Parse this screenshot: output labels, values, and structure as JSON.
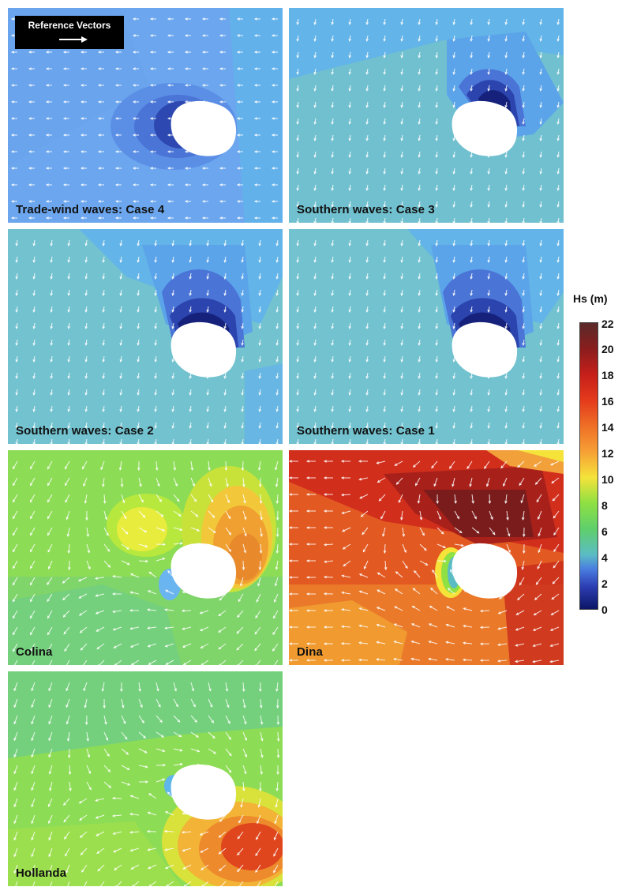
{
  "reference": {
    "label": "Reference Vectors"
  },
  "panels": [
    {
      "caption": "Trade-wind waves: Case 4",
      "base": "#6ba6ee",
      "dir": 180
    },
    {
      "caption": "Southern waves: Case 3",
      "base": "#70c0cf",
      "dir": 100
    },
    {
      "caption": "Southern waves: Case 2",
      "base": "#72c2cf",
      "dir": 100
    },
    {
      "caption": "Southern waves: Case 1",
      "base": "#72c2cf",
      "dir": 100
    },
    {
      "caption": "Colina",
      "base": "#8ddc55",
      "dir": 120
    },
    {
      "caption": "Dina",
      "base": "#e25a22",
      "dir": 180
    },
    {
      "caption": "Hollanda",
      "base": "#8ddc55",
      "dir": 110
    }
  ],
  "legend": {
    "title": "Hs (m)",
    "ticks": [
      "22",
      "20",
      "18",
      "16",
      "14",
      "12",
      "10",
      "8",
      "6",
      "4",
      "2",
      "0"
    ]
  }
}
